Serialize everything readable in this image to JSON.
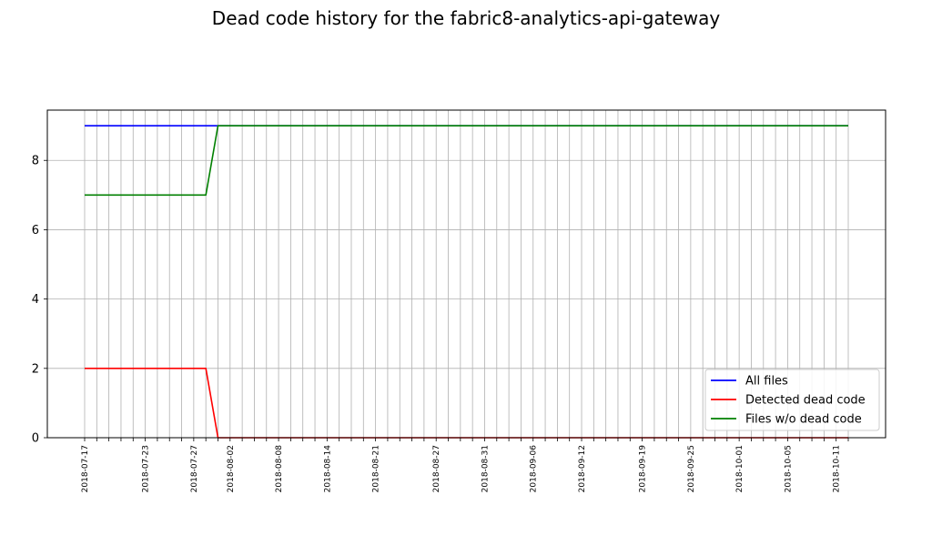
{
  "chart_data": {
    "type": "line",
    "title": "Dead code history for the fabric8-analytics-api-gateway",
    "xlabel": "",
    "ylabel": "",
    "ylim": [
      0,
      9.45
    ],
    "yticks": [
      0,
      2,
      4,
      6,
      8
    ],
    "grid": true,
    "legend_position": "lower-right",
    "x": [
      "2018-07-17",
      "2018-07-18",
      "2018-07-19",
      "2018-07-20",
      "2018-07-21",
      "2018-07-23",
      "2018-07-24",
      "2018-07-25",
      "2018-07-26",
      "2018-07-27",
      "2018-07-30",
      "2018-07-31",
      "2018-08-02",
      "2018-08-03",
      "2018-08-06",
      "2018-08-07",
      "2018-08-08",
      "2018-08-09",
      "2018-08-10",
      "2018-08-13",
      "2018-08-14",
      "2018-08-15",
      "2018-08-16",
      "2018-08-17",
      "2018-08-21",
      "2018-08-22",
      "2018-08-23",
      "2018-08-24",
      "2018-08-25",
      "2018-08-27",
      "2018-08-28",
      "2018-08-29",
      "2018-08-30",
      "2018-08-31",
      "2018-09-03",
      "2018-09-04",
      "2018-09-05",
      "2018-09-06",
      "2018-09-07",
      "2018-09-10",
      "2018-09-11",
      "2018-09-12",
      "2018-09-13",
      "2018-09-14",
      "2018-09-17",
      "2018-09-18",
      "2018-09-19",
      "2018-09-20",
      "2018-09-21",
      "2018-09-24",
      "2018-09-25",
      "2018-09-26",
      "2018-09-27",
      "2018-09-28",
      "2018-10-01",
      "2018-10-02",
      "2018-10-03",
      "2018-10-04",
      "2018-10-05",
      "2018-10-08",
      "2018-10-09",
      "2018-10-10",
      "2018-10-11",
      "2018-10-12"
    ],
    "xticklabels": [
      "2018-07-17",
      "2018-07-23",
      "2018-07-27",
      "2018-08-02",
      "2018-08-08",
      "2018-08-14",
      "2018-08-21",
      "2018-08-27",
      "2018-08-31",
      "2018-09-06",
      "2018-09-12",
      "2018-09-19",
      "2018-09-25",
      "2018-10-01",
      "2018-10-05",
      "2018-10-11"
    ],
    "series": [
      {
        "name": "All files",
        "color": "#0000ff",
        "values": [
          9,
          9,
          9,
          9,
          9,
          9,
          9,
          9,
          9,
          9,
          9,
          9,
          9,
          9,
          9,
          9,
          9,
          9,
          9,
          9,
          9,
          9,
          9,
          9,
          9,
          9,
          9,
          9,
          9,
          9,
          9,
          9,
          9,
          9,
          9,
          9,
          9,
          9,
          9,
          9,
          9,
          9,
          9,
          9,
          9,
          9,
          9,
          9,
          9,
          9,
          9,
          9,
          9,
          9,
          9,
          9,
          9,
          9,
          9,
          9,
          9,
          9,
          9,
          9
        ]
      },
      {
        "name": "Detected dead code",
        "color": "#ff0000",
        "values": [
          2,
          2,
          2,
          2,
          2,
          2,
          2,
          2,
          2,
          2,
          2,
          0,
          0,
          0,
          0,
          0,
          0,
          0,
          0,
          0,
          0,
          0,
          0,
          0,
          0,
          0,
          0,
          0,
          0,
          0,
          0,
          0,
          0,
          0,
          0,
          0,
          0,
          0,
          0,
          0,
          0,
          0,
          0,
          0,
          0,
          0,
          0,
          0,
          0,
          0,
          0,
          0,
          0,
          0,
          0,
          0,
          0,
          0,
          0,
          0,
          0,
          0,
          0,
          0
        ]
      },
      {
        "name": "Files w/o dead code",
        "color": "#008000",
        "values": [
          7,
          7,
          7,
          7,
          7,
          7,
          7,
          7,
          7,
          7,
          7,
          9,
          9,
          9,
          9,
          9,
          9,
          9,
          9,
          9,
          9,
          9,
          9,
          9,
          9,
          9,
          9,
          9,
          9,
          9,
          9,
          9,
          9,
          9,
          9,
          9,
          9,
          9,
          9,
          9,
          9,
          9,
          9,
          9,
          9,
          9,
          9,
          9,
          9,
          9,
          9,
          9,
          9,
          9,
          9,
          9,
          9,
          9,
          9,
          9,
          9,
          9,
          9,
          9
        ]
      }
    ]
  }
}
